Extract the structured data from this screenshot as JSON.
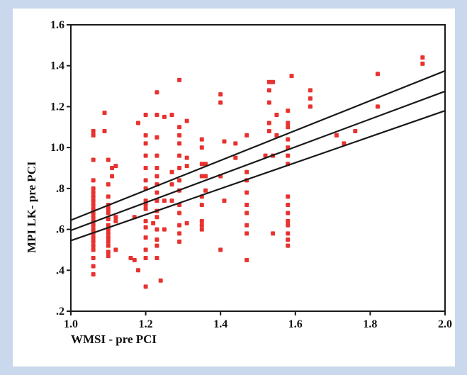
{
  "chart_data": {
    "type": "scatter",
    "xlabel": "WMSI - pre PCI",
    "ylabel": "MPI LK- pre PCI",
    "xlim": [
      1.0,
      2.0
    ],
    "ylim": [
      0.2,
      1.6
    ],
    "x_ticks": [
      "1.0",
      "1.2",
      "1.4",
      "1.6",
      "1.8",
      "2.0"
    ],
    "y_ticks": [
      ".2",
      ".4",
      ".6",
      ".8",
      "1.0",
      "1.2",
      "1.4",
      "1.6"
    ],
    "grid": false,
    "legend": false,
    "point_color": "#e8322f",
    "line_color": "#1a1a1a",
    "fit_lines": [
      {
        "x": [
          1.0,
          2.0
        ],
        "y": [
          0.645,
          1.375
        ]
      },
      {
        "x": [
          1.0,
          2.0
        ],
        "y": [
          0.595,
          1.275
        ]
      },
      {
        "x": [
          1.0,
          2.0
        ],
        "y": [
          0.545,
          1.18
        ]
      }
    ],
    "points": [
      [
        1.06,
        1.08
      ],
      [
        1.06,
        1.06
      ],
      [
        1.06,
        0.94
      ],
      [
        1.06,
        0.84
      ],
      [
        1.06,
        0.8
      ],
      [
        1.06,
        0.78
      ],
      [
        1.06,
        0.76
      ],
      [
        1.06,
        0.74
      ],
      [
        1.06,
        0.72
      ],
      [
        1.06,
        0.7
      ],
      [
        1.06,
        0.68
      ],
      [
        1.06,
        0.66
      ],
      [
        1.06,
        0.64
      ],
      [
        1.06,
        0.62
      ],
      [
        1.06,
        0.6
      ],
      [
        1.06,
        0.58
      ],
      [
        1.06,
        0.56
      ],
      [
        1.06,
        0.54
      ],
      [
        1.06,
        0.52
      ],
      [
        1.06,
        0.5
      ],
      [
        1.06,
        0.46
      ],
      [
        1.06,
        0.42
      ],
      [
        1.06,
        0.38
      ],
      [
        1.09,
        1.17
      ],
      [
        1.09,
        1.08
      ],
      [
        1.1,
        0.94
      ],
      [
        1.1,
        0.82
      ],
      [
        1.1,
        0.76
      ],
      [
        1.1,
        0.72
      ],
      [
        1.1,
        0.7
      ],
      [
        1.1,
        0.68
      ],
      [
        1.1,
        0.65
      ],
      [
        1.1,
        0.62
      ],
      [
        1.1,
        0.6
      ],
      [
        1.1,
        0.58
      ],
      [
        1.1,
        0.56
      ],
      [
        1.1,
        0.54
      ],
      [
        1.1,
        0.52
      ],
      [
        1.1,
        0.49
      ],
      [
        1.1,
        0.47
      ],
      [
        1.11,
        0.9
      ],
      [
        1.11,
        0.86
      ],
      [
        1.12,
        0.91
      ],
      [
        1.12,
        0.66
      ],
      [
        1.12,
        0.64
      ],
      [
        1.12,
        0.5
      ],
      [
        1.16,
        0.46
      ],
      [
        1.17,
        0.45
      ],
      [
        1.17,
        0.66
      ],
      [
        1.18,
        0.4
      ],
      [
        1.18,
        1.12
      ],
      [
        1.2,
        1.16
      ],
      [
        1.2,
        1.06
      ],
      [
        1.2,
        1.02
      ],
      [
        1.2,
        0.96
      ],
      [
        1.2,
        0.9
      ],
      [
        1.2,
        0.84
      ],
      [
        1.2,
        0.8
      ],
      [
        1.2,
        0.74
      ],
      [
        1.2,
        0.72
      ],
      [
        1.2,
        0.7
      ],
      [
        1.2,
        0.64
      ],
      [
        1.2,
        0.61
      ],
      [
        1.2,
        0.56
      ],
      [
        1.2,
        0.5
      ],
      [
        1.2,
        0.46
      ],
      [
        1.2,
        0.32
      ],
      [
        1.22,
        0.63
      ],
      [
        1.23,
        1.27
      ],
      [
        1.23,
        1.16
      ],
      [
        1.23,
        1.05
      ],
      [
        1.23,
        0.96
      ],
      [
        1.23,
        0.9
      ],
      [
        1.23,
        0.86
      ],
      [
        1.23,
        0.82
      ],
      [
        1.23,
        0.78
      ],
      [
        1.23,
        0.74
      ],
      [
        1.23,
        0.69
      ],
      [
        1.23,
        0.66
      ],
      [
        1.23,
        0.6
      ],
      [
        1.23,
        0.55
      ],
      [
        1.23,
        0.52
      ],
      [
        1.23,
        0.46
      ],
      [
        1.24,
        0.35
      ],
      [
        1.25,
        1.15
      ],
      [
        1.25,
        0.74
      ],
      [
        1.25,
        0.6
      ],
      [
        1.27,
        1.16
      ],
      [
        1.27,
        0.88
      ],
      [
        1.27,
        0.82
      ],
      [
        1.27,
        0.74
      ],
      [
        1.29,
        1.33
      ],
      [
        1.29,
        1.1
      ],
      [
        1.29,
        1.06
      ],
      [
        1.29,
        1.02
      ],
      [
        1.29,
        0.96
      ],
      [
        1.29,
        0.9
      ],
      [
        1.29,
        0.84
      ],
      [
        1.29,
        0.79
      ],
      [
        1.29,
        0.72
      ],
      [
        1.29,
        0.68
      ],
      [
        1.29,
        0.62
      ],
      [
        1.29,
        0.58
      ],
      [
        1.29,
        0.54
      ],
      [
        1.31,
        1.13
      ],
      [
        1.31,
        0.95
      ],
      [
        1.31,
        0.91
      ],
      [
        1.31,
        0.63
      ],
      [
        1.35,
        1.04
      ],
      [
        1.35,
        1.0
      ],
      [
        1.35,
        0.92
      ],
      [
        1.35,
        0.86
      ],
      [
        1.35,
        0.76
      ],
      [
        1.35,
        0.72
      ],
      [
        1.35,
        0.64
      ],
      [
        1.35,
        0.62
      ],
      [
        1.35,
        0.6
      ],
      [
        1.36,
        0.92
      ],
      [
        1.36,
        0.86
      ],
      [
        1.36,
        0.79
      ],
      [
        1.4,
        1.26
      ],
      [
        1.4,
        1.22
      ],
      [
        1.4,
        0.86
      ],
      [
        1.4,
        0.5
      ],
      [
        1.41,
        1.03
      ],
      [
        1.41,
        0.74
      ],
      [
        1.44,
        1.02
      ],
      [
        1.44,
        0.95
      ],
      [
        1.47,
        1.06
      ],
      [
        1.47,
        0.88
      ],
      [
        1.47,
        0.84
      ],
      [
        1.47,
        0.78
      ],
      [
        1.47,
        0.72
      ],
      [
        1.47,
        0.68
      ],
      [
        1.47,
        0.62
      ],
      [
        1.47,
        0.58
      ],
      [
        1.47,
        0.45
      ],
      [
        1.52,
        0.96
      ],
      [
        1.53,
        1.32
      ],
      [
        1.53,
        1.28
      ],
      [
        1.53,
        1.22
      ],
      [
        1.53,
        1.12
      ],
      [
        1.53,
        1.08
      ],
      [
        1.54,
        1.32
      ],
      [
        1.54,
        0.96
      ],
      [
        1.54,
        0.58
      ],
      [
        1.55,
        1.06
      ],
      [
        1.55,
        1.16
      ],
      [
        1.58,
        1.18
      ],
      [
        1.58,
        1.12
      ],
      [
        1.58,
        1.1
      ],
      [
        1.58,
        1.04
      ],
      [
        1.58,
        1.0
      ],
      [
        1.58,
        0.96
      ],
      [
        1.58,
        0.92
      ],
      [
        1.58,
        0.76
      ],
      [
        1.58,
        0.72
      ],
      [
        1.58,
        0.68
      ],
      [
        1.58,
        0.64
      ],
      [
        1.58,
        0.62
      ],
      [
        1.58,
        0.58
      ],
      [
        1.58,
        0.55
      ],
      [
        1.58,
        0.52
      ],
      [
        1.59,
        1.35
      ],
      [
        1.64,
        1.28
      ],
      [
        1.64,
        1.24
      ],
      [
        1.64,
        1.2
      ],
      [
        1.71,
        1.06
      ],
      [
        1.73,
        1.02
      ],
      [
        1.76,
        1.08
      ],
      [
        1.82,
        1.36
      ],
      [
        1.82,
        1.2
      ],
      [
        1.94,
        1.44
      ],
      [
        1.94,
        1.41
      ]
    ]
  }
}
